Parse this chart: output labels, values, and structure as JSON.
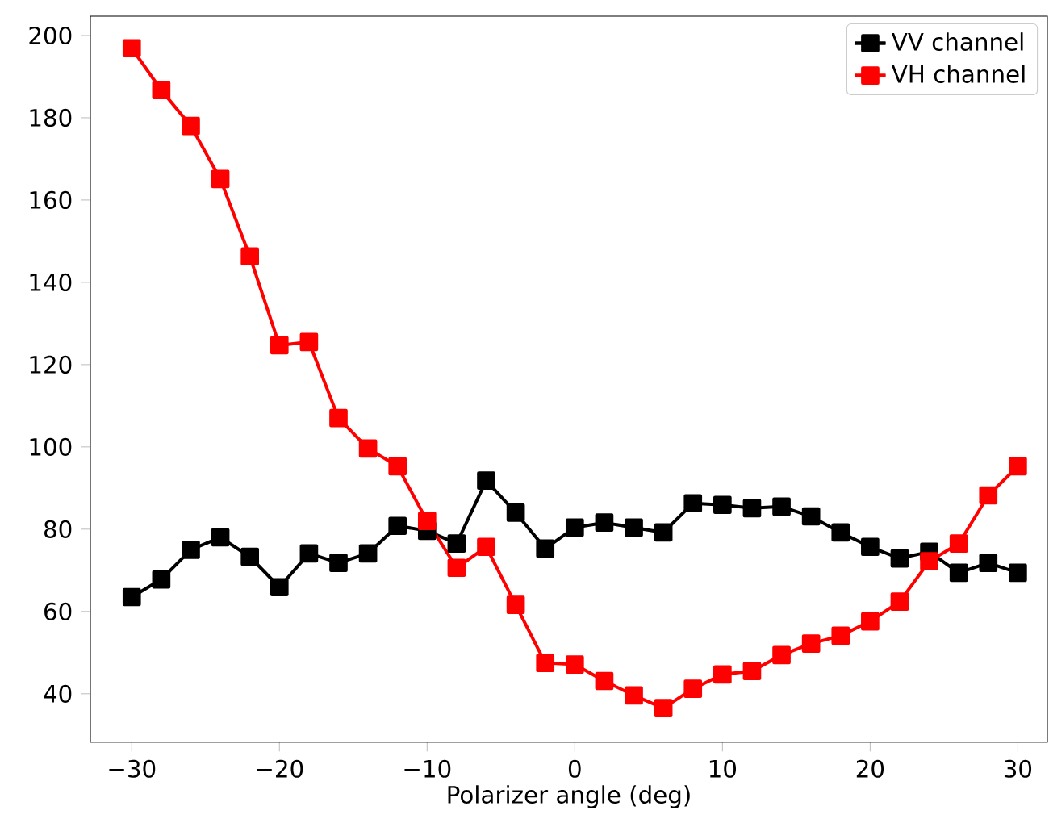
{
  "chart_data": {
    "type": "line",
    "xlabel": "Polarizer angle (deg)",
    "x": [
      -30,
      -28,
      -26,
      -24,
      -22,
      -20,
      -18,
      -16,
      -14,
      -12,
      -10,
      -8,
      -6,
      -4,
      -2,
      0,
      2,
      4,
      6,
      8,
      10,
      12,
      14,
      16,
      18,
      20,
      22,
      24,
      26,
      28,
      30
    ],
    "series": [
      {
        "name": "VV channel",
        "color": "#000000",
        "values": [
          63.5,
          67.8,
          75,
          78,
          73.3,
          65.9,
          74.1,
          71.8,
          74.1,
          80.8,
          79.6,
          76.5,
          91.8,
          84,
          75.3,
          80.4,
          81.6,
          80.4,
          79.2,
          86.3,
          85.9,
          85.1,
          85.5,
          83.1,
          79.2,
          75.7,
          72.9,
          74.5,
          69.4,
          71.8,
          69.4
        ]
      },
      {
        "name": "VH channel",
        "color": "#ff0000",
        "values": [
          196.9,
          186.7,
          178,
          165.1,
          146.3,
          124.7,
          125.5,
          107,
          99.6,
          95.3,
          82,
          70.6,
          75.7,
          61.6,
          47.5,
          47.1,
          43.1,
          39.6,
          36.5,
          41.2,
          44.7,
          45.5,
          49.4,
          52.2,
          54.1,
          57.6,
          62.4,
          72.2,
          76.5,
          88.2,
          95.3
        ]
      }
    ],
    "xlim": [
      -32.8,
      32
    ],
    "ylim": [
      28.2,
      204.7
    ],
    "xticks": [
      {
        "value": -30,
        "label": "−30"
      },
      {
        "value": -20,
        "label": "−20"
      },
      {
        "value": -10,
        "label": "−10"
      },
      0,
      10,
      20,
      30
    ],
    "yticks": [
      40,
      60,
      80,
      100,
      120,
      140,
      160,
      180,
      200
    ],
    "legend": "top right",
    "marker": "square",
    "line_style": "solid",
    "grid": false
  }
}
